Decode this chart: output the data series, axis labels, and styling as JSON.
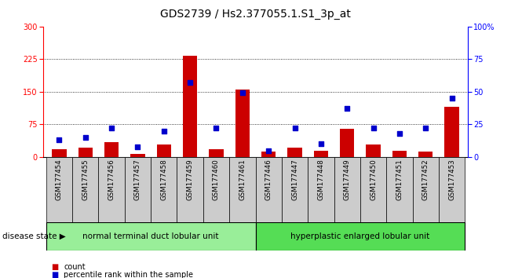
{
  "title": "GDS2739 / Hs2.377055.1.S1_3p_at",
  "samples": [
    "GSM177454",
    "GSM177455",
    "GSM177456",
    "GSM177457",
    "GSM177458",
    "GSM177459",
    "GSM177460",
    "GSM177461",
    "GSM177446",
    "GSM177447",
    "GSM177448",
    "GSM177449",
    "GSM177450",
    "GSM177451",
    "GSM177452",
    "GSM177453"
  ],
  "counts": [
    18,
    22,
    35,
    8,
    28,
    233,
    18,
    155,
    12,
    22,
    15,
    65,
    28,
    15,
    12,
    115
  ],
  "percentiles": [
    13,
    15,
    22,
    8,
    20,
    57,
    22,
    49,
    5,
    22,
    10,
    37,
    22,
    18,
    22,
    45
  ],
  "group1_label": "normal terminal duct lobular unit",
  "group1_count": 8,
  "group2_label": "hyperplastic enlarged lobular unit",
  "group2_count": 8,
  "disease_state_label": "disease state",
  "ylim_left": [
    0,
    300
  ],
  "ylim_right": [
    0,
    100
  ],
  "yticks_left": [
    0,
    75,
    150,
    225,
    300
  ],
  "yticks_right": [
    0,
    25,
    50,
    75,
    100
  ],
  "bar_color": "#cc0000",
  "dot_color": "#0000cc",
  "bg_color": "#cccccc",
  "group1_color": "#99ee99",
  "group2_color": "#55dd55",
  "legend_count_label": "count",
  "legend_pct_label": "percentile rank within the sample",
  "title_fontsize": 10,
  "tick_fontsize": 7,
  "label_fontsize": 7.5
}
